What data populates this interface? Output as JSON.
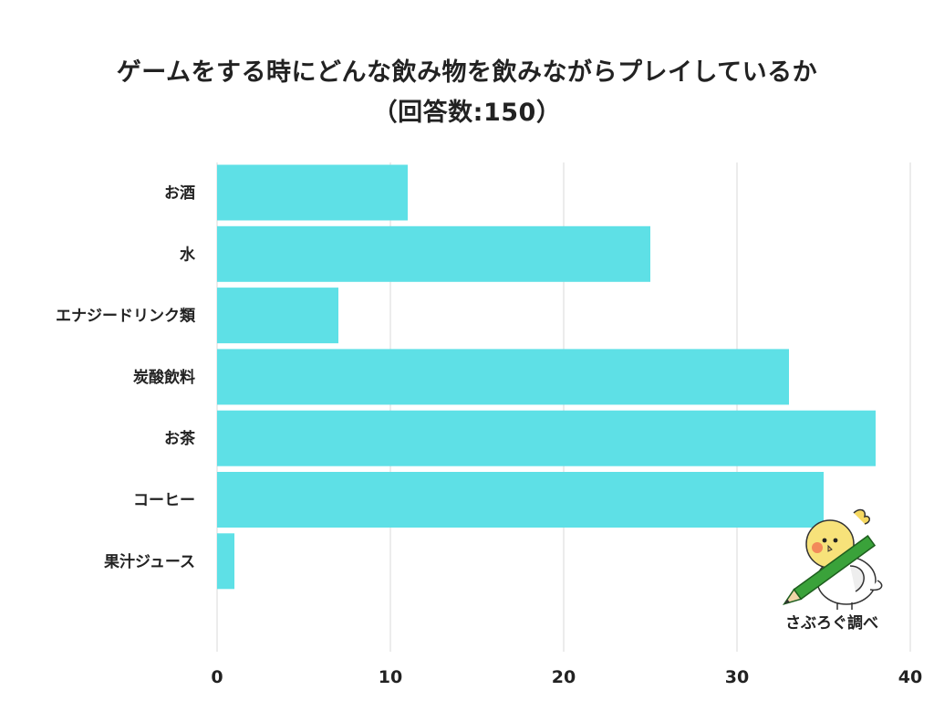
{
  "chart_data": {
    "type": "bar",
    "orientation": "horizontal",
    "title_lines": [
      "ゲームをする時にどんな飲み物を飲みながらプレイしているか",
      "（回答数:150）"
    ],
    "categories": [
      "お酒",
      "水",
      "エナジードリンク類",
      "炭酸飲料",
      "お茶",
      "コーヒー",
      "果汁ジュース"
    ],
    "values": [
      11,
      25,
      7,
      33,
      38,
      35,
      1
    ],
    "xlim": [
      0,
      40
    ],
    "xticks": [
      0,
      10,
      20,
      30,
      40
    ],
    "grid": true,
    "bar_color": "#5ee0e6"
  },
  "credit": {
    "text": "さぶろぐ調べ",
    "mascot": "cockatiel-with-pencil-icon"
  }
}
